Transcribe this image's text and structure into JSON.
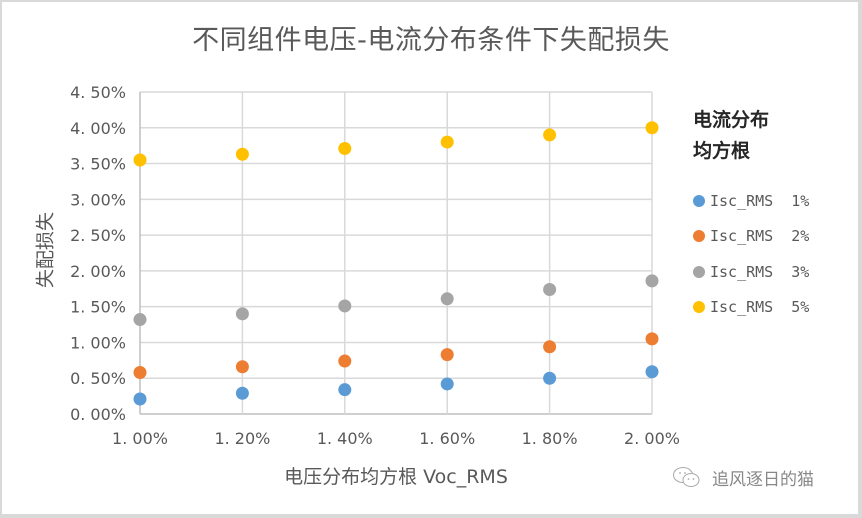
{
  "chart_data": {
    "type": "scatter",
    "title": "不同组件电压-电流分布条件下失配损失",
    "xlabel": "电压分布均方根 Voc_RMS",
    "ylabel": "失配损失",
    "x": [
      1.0,
      1.2,
      1.4,
      1.6,
      1.8,
      2.0
    ],
    "x_tick_labels": [
      "1.00%",
      "1.20%",
      "1.40%",
      "1.60%",
      "1.80%",
      "2.00%"
    ],
    "xlim": [
      1.0,
      2.0
    ],
    "y_tick_labels": [
      "0.00%",
      "0.50%",
      "1.00%",
      "1.50%",
      "2.00%",
      "2.50%",
      "3.00%",
      "3.50%",
      "4.00%",
      "4.50%"
    ],
    "y_ticks": [
      0,
      0.5,
      1.0,
      1.5,
      2.0,
      2.5,
      3.0,
      3.5,
      4.0,
      4.5
    ],
    "ylim": [
      0,
      4.5
    ],
    "grid": {
      "horizontal": true,
      "vertical": true
    },
    "legend_title": "电流分布均方根",
    "legend_position": "right",
    "series": [
      {
        "name": "Isc_RMS 1%",
        "color": "#5B9BD5",
        "values": [
          0.21,
          0.29,
          0.34,
          0.42,
          0.5,
          0.59
        ]
      },
      {
        "name": "Isc_RMS 2%",
        "color": "#ED7D31",
        "values": [
          0.58,
          0.66,
          0.74,
          0.83,
          0.94,
          1.05
        ]
      },
      {
        "name": "Isc_RMS 3%",
        "color": "#A5A5A5",
        "values": [
          1.32,
          1.4,
          1.51,
          1.61,
          1.74,
          1.86
        ]
      },
      {
        "name": "Isc_RMS 5%",
        "color": "#FFC000",
        "values": [
          3.55,
          3.63,
          3.71,
          3.8,
          3.9,
          4.0
        ]
      }
    ]
  },
  "legend": {
    "title_line1": "电流分布",
    "title_line2": "均方根"
  },
  "watermark": {
    "icon": "wechat-icon",
    "text": "追风逐日的猫"
  }
}
